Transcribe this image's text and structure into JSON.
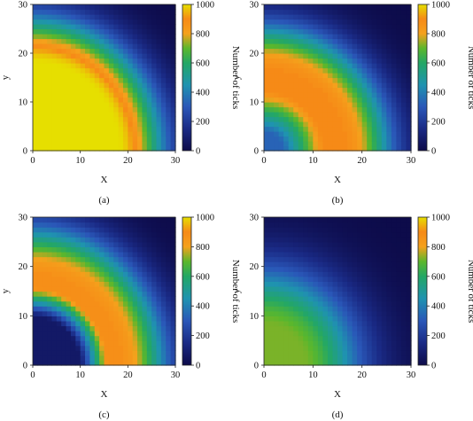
{
  "chart_data": [
    {
      "type": "heatmap",
      "panel": "a",
      "caption": "(a)",
      "xlabel": "X",
      "ylabel": "y",
      "xlim": [
        0,
        30
      ],
      "ylim": [
        0,
        30
      ],
      "xticks": [
        "0",
        "10",
        "20",
        "30"
      ],
      "yticks": [
        "0",
        "10",
        "20",
        "30"
      ],
      "colorbar": {
        "label": "Number of ticks",
        "range": [
          0,
          1000
        ],
        "ticks": [
          "0",
          "200",
          "400",
          "600",
          "800",
          "1000"
        ]
      },
      "model": {
        "plateau_radius": 18,
        "plateau_value": 1000,
        "inner_radius": 0,
        "inner_value": 1000,
        "peak_value": 1000,
        "outer_decay": 0.0023
      }
    },
    {
      "type": "heatmap",
      "panel": "b",
      "caption": "(b)",
      "xlabel": "X",
      "ylabel": "y",
      "xlim": [
        0,
        30
      ],
      "ylim": [
        0,
        30
      ],
      "xticks": [
        "0",
        "10",
        "20",
        "30"
      ],
      "yticks": [
        "0",
        "10",
        "20",
        "30"
      ],
      "colorbar": {
        "label": "Number of ticks",
        "range": [
          0,
          1000
        ],
        "ticks": [
          "0",
          "200",
          "400",
          "600",
          "800",
          "1000"
        ]
      },
      "model": {
        "plateau_radius": 17,
        "plateau_value": 880,
        "inner_radius": 4,
        "inner_value": 330,
        "peak_value": 900,
        "outer_decay": 0.0025
      }
    },
    {
      "type": "heatmap",
      "panel": "c",
      "caption": "(c)",
      "xlabel": "X",
      "ylabel": "y",
      "xlim": [
        0,
        30
      ],
      "ylim": [
        0,
        30
      ],
      "xticks": [
        "0",
        "10",
        "20",
        "30"
      ],
      "yticks": [
        "0",
        "10",
        "20",
        "30"
      ],
      "colorbar": {
        "label": "Number of ticks",
        "range": [
          0,
          1000
        ],
        "ticks": [
          "0",
          "200",
          "400",
          "600",
          "800",
          "1000"
        ]
      },
      "model": {
        "plateau_radius": 19,
        "plateau_value": 860,
        "inner_radius": 10,
        "inner_value": 70,
        "peak_value": 880,
        "outer_decay": 0.0024
      }
    },
    {
      "type": "heatmap",
      "panel": "d",
      "caption": "(d)",
      "xlabel": "X",
      "ylabel": "y",
      "xlim": [
        0,
        30
      ],
      "ylim": [
        0,
        30
      ],
      "xticks": [
        "0",
        "10",
        "20",
        "30"
      ],
      "yticks": [
        "0",
        "10",
        "20",
        "30"
      ],
      "colorbar": {
        "label": "Number of ticks",
        "range": [
          0,
          1000
        ],
        "ticks": [
          "0",
          "200",
          "400",
          "600",
          "800",
          "1000"
        ]
      },
      "model": {
        "plateau_radius": 8,
        "plateau_value": 720,
        "inner_radius": 0,
        "inner_value": 720,
        "peak_value": 720,
        "outer_decay": 0.0014
      }
    }
  ]
}
